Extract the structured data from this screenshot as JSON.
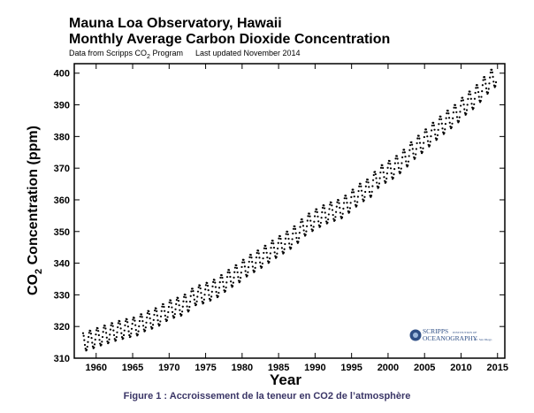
{
  "header": {
    "title_line1": "Mauna Loa Observatory, Hawaii",
    "title_line2": "Monthly Average Carbon Dioxide Concentration",
    "source_prefix": "Data from Scripps CO",
    "source_sub": "2",
    "source_suffix": " Program",
    "updated": "Last updated November 2014"
  },
  "caption": "Figure 1 :  Accroissement de la teneur en CO2 de l’atmosphère",
  "logo": {
    "line1": "SCRIPPS",
    "line1_small": "INSTITUTION OF",
    "line2": "OCEANOGRAPHY",
    "line2_small": "UC San Diego"
  },
  "chart_data": {
    "type": "scatter",
    "title": "Monthly Average Carbon Dioxide Concentration",
    "xlabel": "Year",
    "ylabel_prefix": "CO",
    "ylabel_sub": "2",
    "ylabel_suffix": " Concentration (ppm)",
    "xlim": [
      1957,
      2016
    ],
    "ylim": [
      310,
      403
    ],
    "x_ticks": [
      1960,
      1965,
      1970,
      1975,
      1980,
      1985,
      1990,
      1995,
      2000,
      2005,
      2010,
      2015
    ],
    "y_ticks": [
      310,
      320,
      330,
      340,
      350,
      360,
      370,
      380,
      390,
      400
    ],
    "grid": false,
    "marker_color": "#000000",
    "series_description": "monthly means 1958–2014, with seasonal cycle",
    "annual_means": [
      [
        1958,
        315.3
      ],
      [
        1959,
        316.0
      ],
      [
        1960,
        316.9
      ],
      [
        1961,
        317.6
      ],
      [
        1962,
        318.4
      ],
      [
        1963,
        319.0
      ],
      [
        1964,
        319.6
      ],
      [
        1965,
        320.0
      ],
      [
        1966,
        321.4
      ],
      [
        1967,
        322.2
      ],
      [
        1968,
        323.1
      ],
      [
        1969,
        324.6
      ],
      [
        1970,
        325.7
      ],
      [
        1971,
        326.3
      ],
      [
        1972,
        327.5
      ],
      [
        1973,
        329.7
      ],
      [
        1974,
        330.2
      ],
      [
        1975,
        331.1
      ],
      [
        1976,
        332.1
      ],
      [
        1977,
        333.8
      ],
      [
        1978,
        335.4
      ],
      [
        1979,
        336.8
      ],
      [
        1980,
        338.7
      ],
      [
        1981,
        340.1
      ],
      [
        1982,
        341.4
      ],
      [
        1983,
        343.0
      ],
      [
        1984,
        344.6
      ],
      [
        1985,
        346.0
      ],
      [
        1986,
        347.4
      ],
      [
        1987,
        349.2
      ],
      [
        1988,
        351.6
      ],
      [
        1989,
        353.1
      ],
      [
        1990,
        354.4
      ],
      [
        1991,
        355.6
      ],
      [
        1992,
        356.4
      ],
      [
        1993,
        357.1
      ],
      [
        1994,
        358.8
      ],
      [
        1995,
        360.8
      ],
      [
        1996,
        362.6
      ],
      [
        1997,
        363.7
      ],
      [
        1998,
        366.7
      ],
      [
        1999,
        368.4
      ],
      [
        2000,
        369.6
      ],
      [
        2001,
        371.3
      ],
      [
        2002,
        373.4
      ],
      [
        2003,
        375.9
      ],
      [
        2004,
        377.7
      ],
      [
        2005,
        379.8
      ],
      [
        2006,
        381.9
      ],
      [
        2007,
        383.8
      ],
      [
        2008,
        385.6
      ],
      [
        2009,
        387.4
      ],
      [
        2010,
        389.9
      ],
      [
        2011,
        391.6
      ],
      [
        2012,
        393.8
      ],
      [
        2013,
        396.5
      ],
      [
        2014,
        398.6
      ]
    ],
    "seasonal_amplitude_ppm": [
      3.0,
      3.3
    ]
  }
}
